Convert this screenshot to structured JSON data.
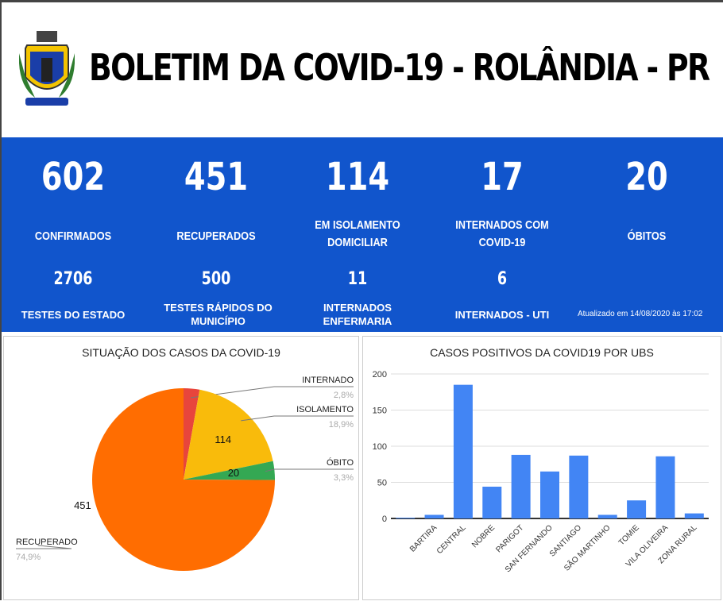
{
  "header": {
    "title": "BOLETIM DA COVID-19 - ROLÂNDIA - PR",
    "crest_text": "ROLÂNDIA"
  },
  "stats": [
    {
      "value": "602",
      "label": "CONFIRMADOS"
    },
    {
      "value": "451",
      "label": "RECUPERADOS"
    },
    {
      "value": "114",
      "label": "EM ISOLAMENTO DOMICILIAR"
    },
    {
      "value": "17",
      "label": "INTERNADOS COM COVID-19"
    },
    {
      "value": "20",
      "label": "ÓBITOS"
    }
  ],
  "substats": [
    {
      "value": "2706",
      "label": "TESTES DO ESTADO"
    },
    {
      "value": "500",
      "label": "TESTES RÁPIDOS DO MUNICÍPIO"
    },
    {
      "value": "11",
      "label": "INTERNADOS ENFERMARIA"
    },
    {
      "value": "6",
      "label": "INTERNADOS - UTI"
    }
  ],
  "updated": "Atualizado em 14/08/2020 às 17:02",
  "chart_data": [
    {
      "type": "pie",
      "title": "SITUAÇÃO DOS CASOS DA COVID-19",
      "slices": [
        {
          "label": "INTERNADO",
          "value": 17,
          "pct": "2,8%",
          "color": "#e8453c",
          "show_value": false
        },
        {
          "label": "ISOLAMENTO",
          "value": 114,
          "pct": "18,9%",
          "color": "#f9bb0b",
          "show_value": true
        },
        {
          "label": "ÓBITO",
          "value": 20,
          "pct": "3,3%",
          "color": "#34a853",
          "show_value": true
        },
        {
          "label": "RECUPERADO",
          "value": 451,
          "pct": "74,9%",
          "color": "#ff6d01",
          "show_value": true
        }
      ]
    },
    {
      "type": "bar",
      "title": "CASOS POSITIVOS DA COVID19 POR UBS",
      "categories": [
        "",
        "BARTIRA",
        "CENTRAL",
        "NOBRE",
        "PARIGOT",
        "SAN FERNANDO",
        "SANTIAGO",
        "SÃO MARTINHO",
        "TOMIE",
        "VILA OLIVEIRA",
        "ZONA RURAL"
      ],
      "values": [
        1,
        5,
        185,
        44,
        88,
        65,
        87,
        5,
        25,
        86,
        7
      ],
      "yticks": [
        "0",
        "50",
        "100",
        "150",
        "200"
      ],
      "ylim": [
        0,
        200
      ],
      "color": "#4285f4"
    }
  ]
}
